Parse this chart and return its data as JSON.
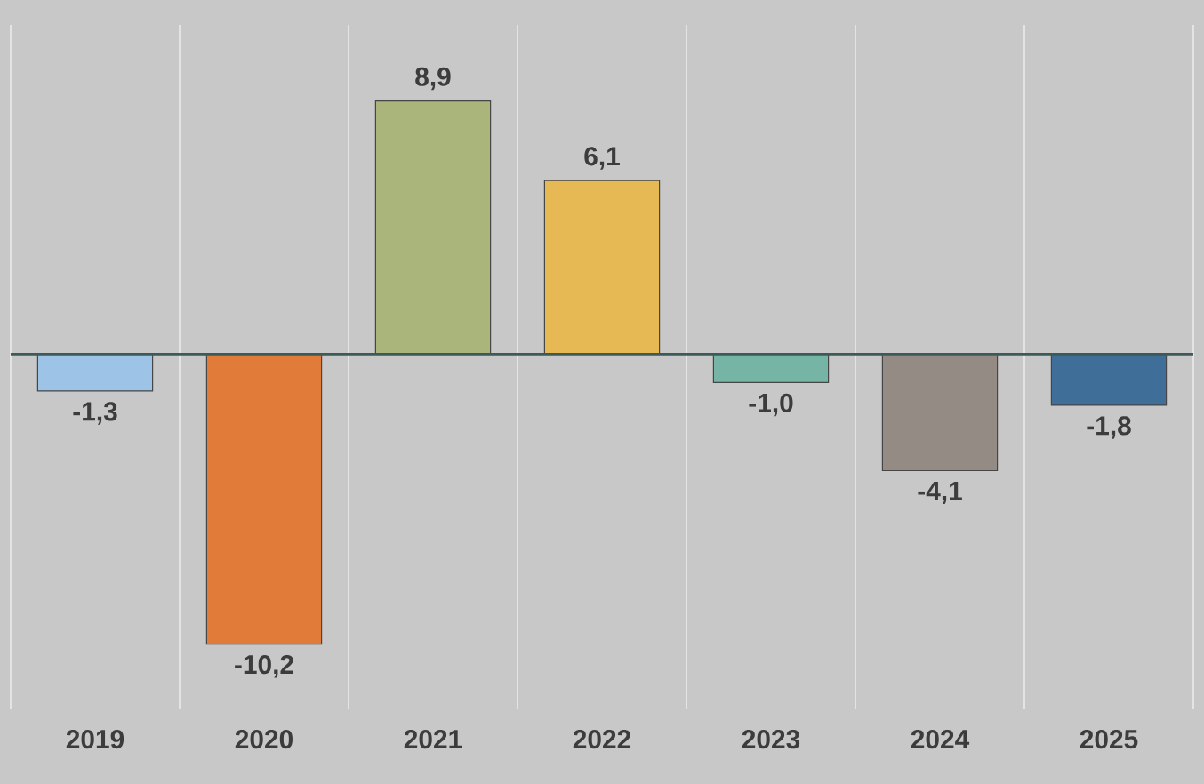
{
  "chart_data": {
    "type": "bar",
    "categories": [
      "2019",
      "2020",
      "2021",
      "2022",
      "2023",
      "2024",
      "2025"
    ],
    "values": [
      -1.3,
      -10.2,
      8.9,
      6.1,
      -1.0,
      -4.1,
      -1.8
    ],
    "colors": [
      "#9dc3e6",
      "#e07b39",
      "#a9b57a",
      "#e6b955",
      "#76b5a5",
      "#958b85",
      "#3f6e99"
    ],
    "value_labels": [
      "-1,3",
      "-10,2",
      "8,9",
      "6,1",
      "-1,0",
      "-4,1",
      "-1,8"
    ],
    "grid": "x"
  }
}
